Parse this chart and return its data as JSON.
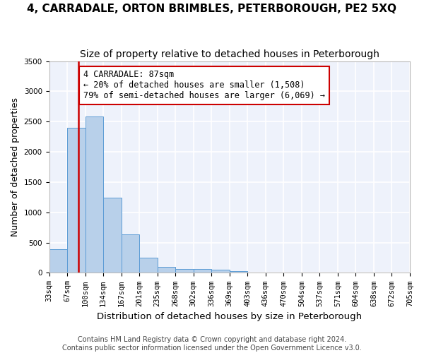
{
  "title": "4, CARRADALE, ORTON BRIMBLES, PETERBOROUGH, PE2 5XQ",
  "subtitle": "Size of property relative to detached houses in Peterborough",
  "xlabel": "Distribution of detached houses by size in Peterborough",
  "ylabel": "Number of detached properties",
  "bar_values": [
    390,
    2400,
    2580,
    1240,
    640,
    255,
    100,
    62,
    62,
    50,
    30,
    5,
    5,
    5,
    5,
    5,
    5,
    5,
    5,
    5
  ],
  "bin_labels": [
    "33sqm",
    "67sqm",
    "100sqm",
    "134sqm",
    "167sqm",
    "201sqm",
    "235sqm",
    "268sqm",
    "302sqm",
    "336sqm",
    "369sqm",
    "403sqm",
    "436sqm",
    "470sqm",
    "504sqm",
    "537sqm",
    "571sqm",
    "604sqm",
    "638sqm",
    "672sqm",
    "705sqm"
  ],
  "bar_color": "#b8d0ea",
  "bar_edge_color": "#5b9bd5",
  "bg_color": "#eef2fb",
  "grid_color": "#ffffff",
  "vline_color": "#cc0000",
  "ylim": [
    0,
    3500
  ],
  "yticks": [
    0,
    500,
    1000,
    1500,
    2000,
    2500,
    3000,
    3500
  ],
  "title_fontsize": 11,
  "subtitle_fontsize": 10,
  "xlabel_fontsize": 9.5,
  "ylabel_fontsize": 9,
  "tick_fontsize": 7.5,
  "annot_fontsize": 8.5,
  "annot_text": "4 CARRADALE: 87sqm\n← 20% of detached houses are smaller (1,508)\n79% of semi-detached houses are larger (6,069) →",
  "annot_edge_color": "#cc0000",
  "footer": "Contains HM Land Registry data © Crown copyright and database right 2024.\nContains public sector information licensed under the Open Government Licence v3.0.",
  "footer_fontsize": 7
}
